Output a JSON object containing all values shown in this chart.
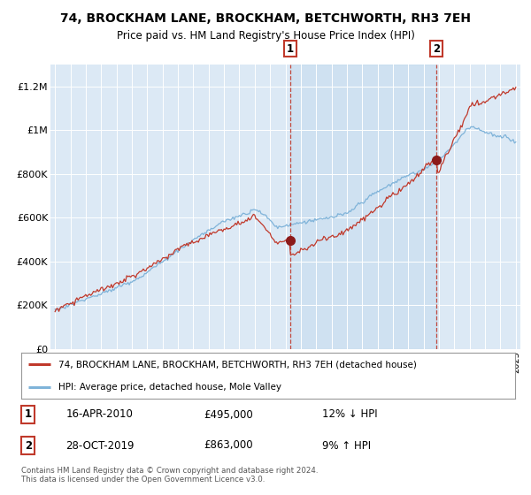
{
  "title": "74, BROCKHAM LANE, BROCKHAM, BETCHWORTH, RH3 7EH",
  "subtitle": "Price paid vs. HM Land Registry's House Price Index (HPI)",
  "fig_bg_color": "#f2f2f2",
  "plot_bg_color": "#dce9f5",
  "shaded_region_color": "#c5d9ef",
  "legend_label_red": "74, BROCKHAM LANE, BROCKHAM, BETCHWORTH, RH3 7EH (detached house)",
  "legend_label_blue": "HPI: Average price, detached house, Mole Valley",
  "footer": "Contains HM Land Registry data © Crown copyright and database right 2024.\nThis data is licensed under the Open Government Licence v3.0.",
  "sale1_date": "16-APR-2010",
  "sale1_price": "£495,000",
  "sale1_hpi": "12% ↓ HPI",
  "sale2_date": "28-OCT-2019",
  "sale2_price": "£863,000",
  "sale2_hpi": "9% ↑ HPI",
  "red_color": "#c0392b",
  "blue_color": "#7fb3d9",
  "marker_color": "#8b1a1a",
  "dashed_line_color": "#c0392b",
  "ylim": [
    0,
    1300000
  ],
  "yticks": [
    0,
    200000,
    400000,
    600000,
    800000,
    1000000,
    1200000
  ],
  "ytick_labels": [
    "£0",
    "£200K",
    "£400K",
    "£600K",
    "£800K",
    "£1M",
    "£1.2M"
  ],
  "sale1_x": 2010.29,
  "sale1_y": 495000,
  "sale2_x": 2019.83,
  "sale2_y": 863000,
  "xmin": 1995.0,
  "xmax": 2025.0
}
